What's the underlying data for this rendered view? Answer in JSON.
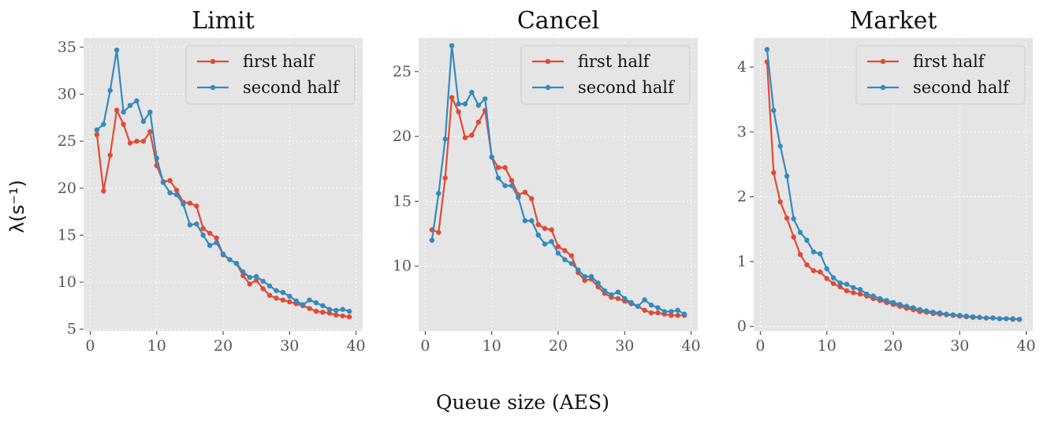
{
  "figure": {
    "xlabel": "Queue size (AES)",
    "ylabel": "λ(s⁻¹)",
    "colors": {
      "first": "#E24A33",
      "second": "#348ABD",
      "panel_bg": "#E5E5E5",
      "grid": "#ffffff"
    }
  },
  "chart_data": [
    {
      "type": "line",
      "title": "Limit",
      "xlim": [
        -1,
        41
      ],
      "ylim": [
        4.8,
        36
      ],
      "xticks": [
        0,
        10,
        20,
        30,
        40
      ],
      "yticks": [
        5,
        10,
        15,
        20,
        25,
        30,
        35
      ],
      "legend": "top-right",
      "series": [
        {
          "name": "first half",
          "color": "#E24A33",
          "x": [
            1,
            2,
            3,
            4,
            5,
            6,
            7,
            8,
            9,
            10,
            11,
            12,
            13,
            14,
            15,
            16,
            17,
            18,
            19,
            20,
            21,
            22,
            23,
            24,
            25,
            26,
            27,
            28,
            29,
            30,
            31,
            32,
            33,
            34,
            35,
            36,
            37,
            38,
            39
          ],
          "values": [
            25.7,
            19.7,
            23.5,
            28.3,
            26.8,
            24.8,
            25.0,
            25.0,
            26.0,
            22.4,
            20.7,
            20.8,
            19.8,
            18.5,
            18.4,
            18.1,
            15.7,
            15.2,
            14.7,
            12.9,
            12.4,
            12.0,
            10.7,
            9.8,
            10.2,
            9.3,
            8.6,
            8.3,
            8.1,
            7.9,
            7.7,
            7.5,
            7.2,
            6.9,
            6.8,
            6.7,
            6.5,
            6.4,
            6.3
          ]
        },
        {
          "name": "second half",
          "color": "#348ABD",
          "x": [
            1,
            2,
            3,
            4,
            5,
            6,
            7,
            8,
            9,
            10,
            11,
            12,
            13,
            14,
            15,
            16,
            17,
            18,
            19,
            20,
            21,
            22,
            23,
            24,
            25,
            26,
            27,
            28,
            29,
            30,
            31,
            32,
            33,
            34,
            35,
            36,
            37,
            38,
            39
          ],
          "values": [
            26.2,
            26.8,
            30.4,
            34.7,
            28.1,
            28.8,
            29.3,
            27.1,
            28.1,
            23.2,
            20.6,
            19.5,
            19.3,
            18.3,
            16.1,
            16.2,
            15.0,
            13.9,
            14.2,
            13.0,
            12.4,
            12.0,
            11.1,
            10.5,
            10.6,
            10.1,
            9.6,
            9.1,
            8.9,
            8.5,
            8.0,
            7.6,
            8.1,
            7.8,
            7.5,
            7.1,
            7.0,
            7.1,
            6.9
          ]
        }
      ]
    },
    {
      "type": "line",
      "title": "Cancel",
      "xlim": [
        -1,
        41
      ],
      "ylim": [
        5,
        27.6
      ],
      "xticks": [
        0,
        10,
        20,
        30,
        40
      ],
      "yticks": [
        10,
        15,
        20,
        25
      ],
      "legend": "top-right",
      "series": [
        {
          "name": "first half",
          "color": "#E24A33",
          "x": [
            1,
            2,
            3,
            4,
            5,
            6,
            7,
            8,
            9,
            10,
            11,
            12,
            13,
            14,
            15,
            16,
            17,
            18,
            19,
            20,
            21,
            22,
            23,
            24,
            25,
            26,
            27,
            28,
            29,
            30,
            31,
            32,
            33,
            34,
            35,
            36,
            37,
            38,
            39
          ],
          "values": [
            12.8,
            12.6,
            16.8,
            23.0,
            21.9,
            19.9,
            20.1,
            21.1,
            22.0,
            18.4,
            17.6,
            17.6,
            16.6,
            15.5,
            15.7,
            15.2,
            13.2,
            12.9,
            12.8,
            11.5,
            11.2,
            10.8,
            9.5,
            8.9,
            9.0,
            8.4,
            7.9,
            7.6,
            7.5,
            7.3,
            7.1,
            6.9,
            6.6,
            6.4,
            6.4,
            6.3,
            6.2,
            6.2,
            6.2
          ]
        },
        {
          "name": "second half",
          "color": "#348ABD",
          "x": [
            1,
            2,
            3,
            4,
            5,
            6,
            7,
            8,
            9,
            10,
            11,
            12,
            13,
            14,
            15,
            16,
            17,
            18,
            19,
            20,
            21,
            22,
            23,
            24,
            25,
            26,
            27,
            28,
            29,
            30,
            31,
            32,
            33,
            34,
            35,
            36,
            37,
            38,
            39
          ],
          "values": [
            12.0,
            15.6,
            19.8,
            27.0,
            22.5,
            22.5,
            23.4,
            22.4,
            22.9,
            18.4,
            16.8,
            16.2,
            16.2,
            15.3,
            13.5,
            13.5,
            12.4,
            11.7,
            11.9,
            11.0,
            10.5,
            10.2,
            9.7,
            9.2,
            9.2,
            8.7,
            8.1,
            7.8,
            8.0,
            7.5,
            7.2,
            6.9,
            7.4,
            7.0,
            6.8,
            6.5,
            6.5,
            6.6,
            6.3
          ]
        }
      ]
    },
    {
      "type": "line",
      "title": "Market",
      "xlim": [
        -1,
        41
      ],
      "ylim": [
        -0.07,
        4.45
      ],
      "xticks": [
        0,
        10,
        20,
        30,
        40
      ],
      "yticks": [
        0,
        1,
        2,
        3,
        4
      ],
      "legend": "top-right",
      "series": [
        {
          "name": "first half",
          "color": "#E24A33",
          "x": [
            1,
            2,
            3,
            4,
            5,
            6,
            7,
            8,
            9,
            10,
            11,
            12,
            13,
            14,
            15,
            16,
            17,
            18,
            19,
            20,
            21,
            22,
            23,
            24,
            25,
            26,
            27,
            28,
            29,
            30,
            31,
            32,
            33,
            34,
            35,
            36,
            37,
            38,
            39
          ],
          "values": [
            4.08,
            2.37,
            1.92,
            1.67,
            1.38,
            1.11,
            0.95,
            0.86,
            0.84,
            0.74,
            0.66,
            0.61,
            0.55,
            0.52,
            0.5,
            0.47,
            0.43,
            0.4,
            0.37,
            0.34,
            0.31,
            0.28,
            0.26,
            0.23,
            0.22,
            0.2,
            0.19,
            0.18,
            0.17,
            0.16,
            0.15,
            0.14,
            0.14,
            0.13,
            0.13,
            0.12,
            0.12,
            0.11,
            0.11
          ]
        },
        {
          "name": "second half",
          "color": "#348ABD",
          "x": [
            1,
            2,
            3,
            4,
            5,
            6,
            7,
            8,
            9,
            10,
            11,
            12,
            13,
            14,
            15,
            16,
            17,
            18,
            19,
            20,
            21,
            22,
            23,
            24,
            25,
            26,
            27,
            28,
            29,
            30,
            31,
            32,
            33,
            34,
            35,
            36,
            37,
            38,
            39
          ],
          "values": [
            4.27,
            3.33,
            2.78,
            2.32,
            1.66,
            1.45,
            1.33,
            1.15,
            1.12,
            0.89,
            0.75,
            0.67,
            0.65,
            0.6,
            0.57,
            0.5,
            0.47,
            0.43,
            0.4,
            0.37,
            0.34,
            0.31,
            0.29,
            0.26,
            0.24,
            0.22,
            0.21,
            0.19,
            0.18,
            0.17,
            0.16,
            0.15,
            0.14,
            0.13,
            0.13,
            0.12,
            0.12,
            0.12,
            0.11
          ]
        }
      ]
    }
  ]
}
